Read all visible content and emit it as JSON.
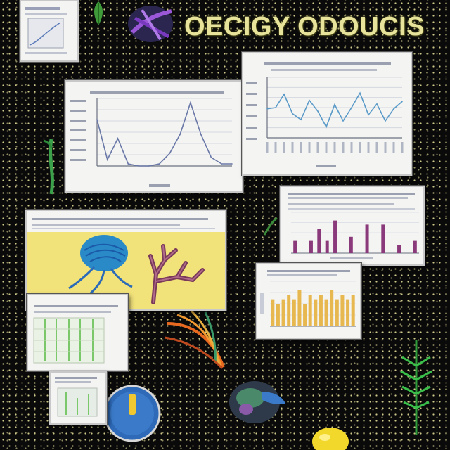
{
  "title": "OECIGY ODOUCIS",
  "colors": {
    "line": "#5a9ac8",
    "bar_purple": "#8a3a7a",
    "bar_gold": "#e8b850",
    "panel_yellow": "#f2e27a",
    "title": "#e8e39a"
  },
  "chart_data": [
    {
      "type": "line",
      "title": "",
      "xlabel": "",
      "ylabel": "",
      "x": [
        1,
        2,
        3,
        4,
        5,
        6,
        7,
        8,
        9,
        10,
        11,
        12,
        13,
        14
      ],
      "values": [
        22,
        3,
        13,
        1,
        0,
        0,
        1,
        6,
        15,
        30,
        15,
        4,
        1,
        1
      ],
      "ylim": [
        0,
        32
      ]
    },
    {
      "type": "line",
      "title": "",
      "xlabel": "",
      "ylabel": "",
      "x": [
        1,
        2,
        3,
        4,
        5,
        6,
        7,
        8,
        9,
        10,
        11,
        12,
        13,
        14,
        15,
        16,
        17
      ],
      "values": [
        48,
        50,
        72,
        40,
        30,
        62,
        44,
        18,
        55,
        28,
        50,
        74,
        38,
        56,
        28,
        48,
        60
      ],
      "ylim": [
        0,
        100
      ]
    },
    {
      "type": "bar",
      "title": "",
      "xlabel": "",
      "ylabel": "",
      "values": [
        3,
        0,
        3,
        6,
        3,
        8,
        0,
        4,
        0,
        7,
        0,
        7,
        0,
        2,
        0,
        3
      ],
      "ylim": [
        0,
        10
      ]
    },
    {
      "type": "bar",
      "title": "",
      "xlabel": "",
      "ylabel": "",
      "values": [
        6,
        5,
        6,
        7,
        6,
        8,
        5,
        7,
        6,
        7,
        6,
        8,
        6,
        7,
        6,
        7
      ],
      "ylim": [
        0,
        10
      ]
    }
  ],
  "decorations": {
    "top_left_leaf": "leaf-icon",
    "top_orb": "purple-orb-icon",
    "left_stem": "stem-icon",
    "coral_left": "blue-coral-icon",
    "coral_right": "branch-coral-icon",
    "feather": "feather-icon",
    "bottom_orb": "dark-orb-icon",
    "gauge": "gauge-icon",
    "fern": "fern-icon",
    "lemon": "lemon-icon"
  }
}
